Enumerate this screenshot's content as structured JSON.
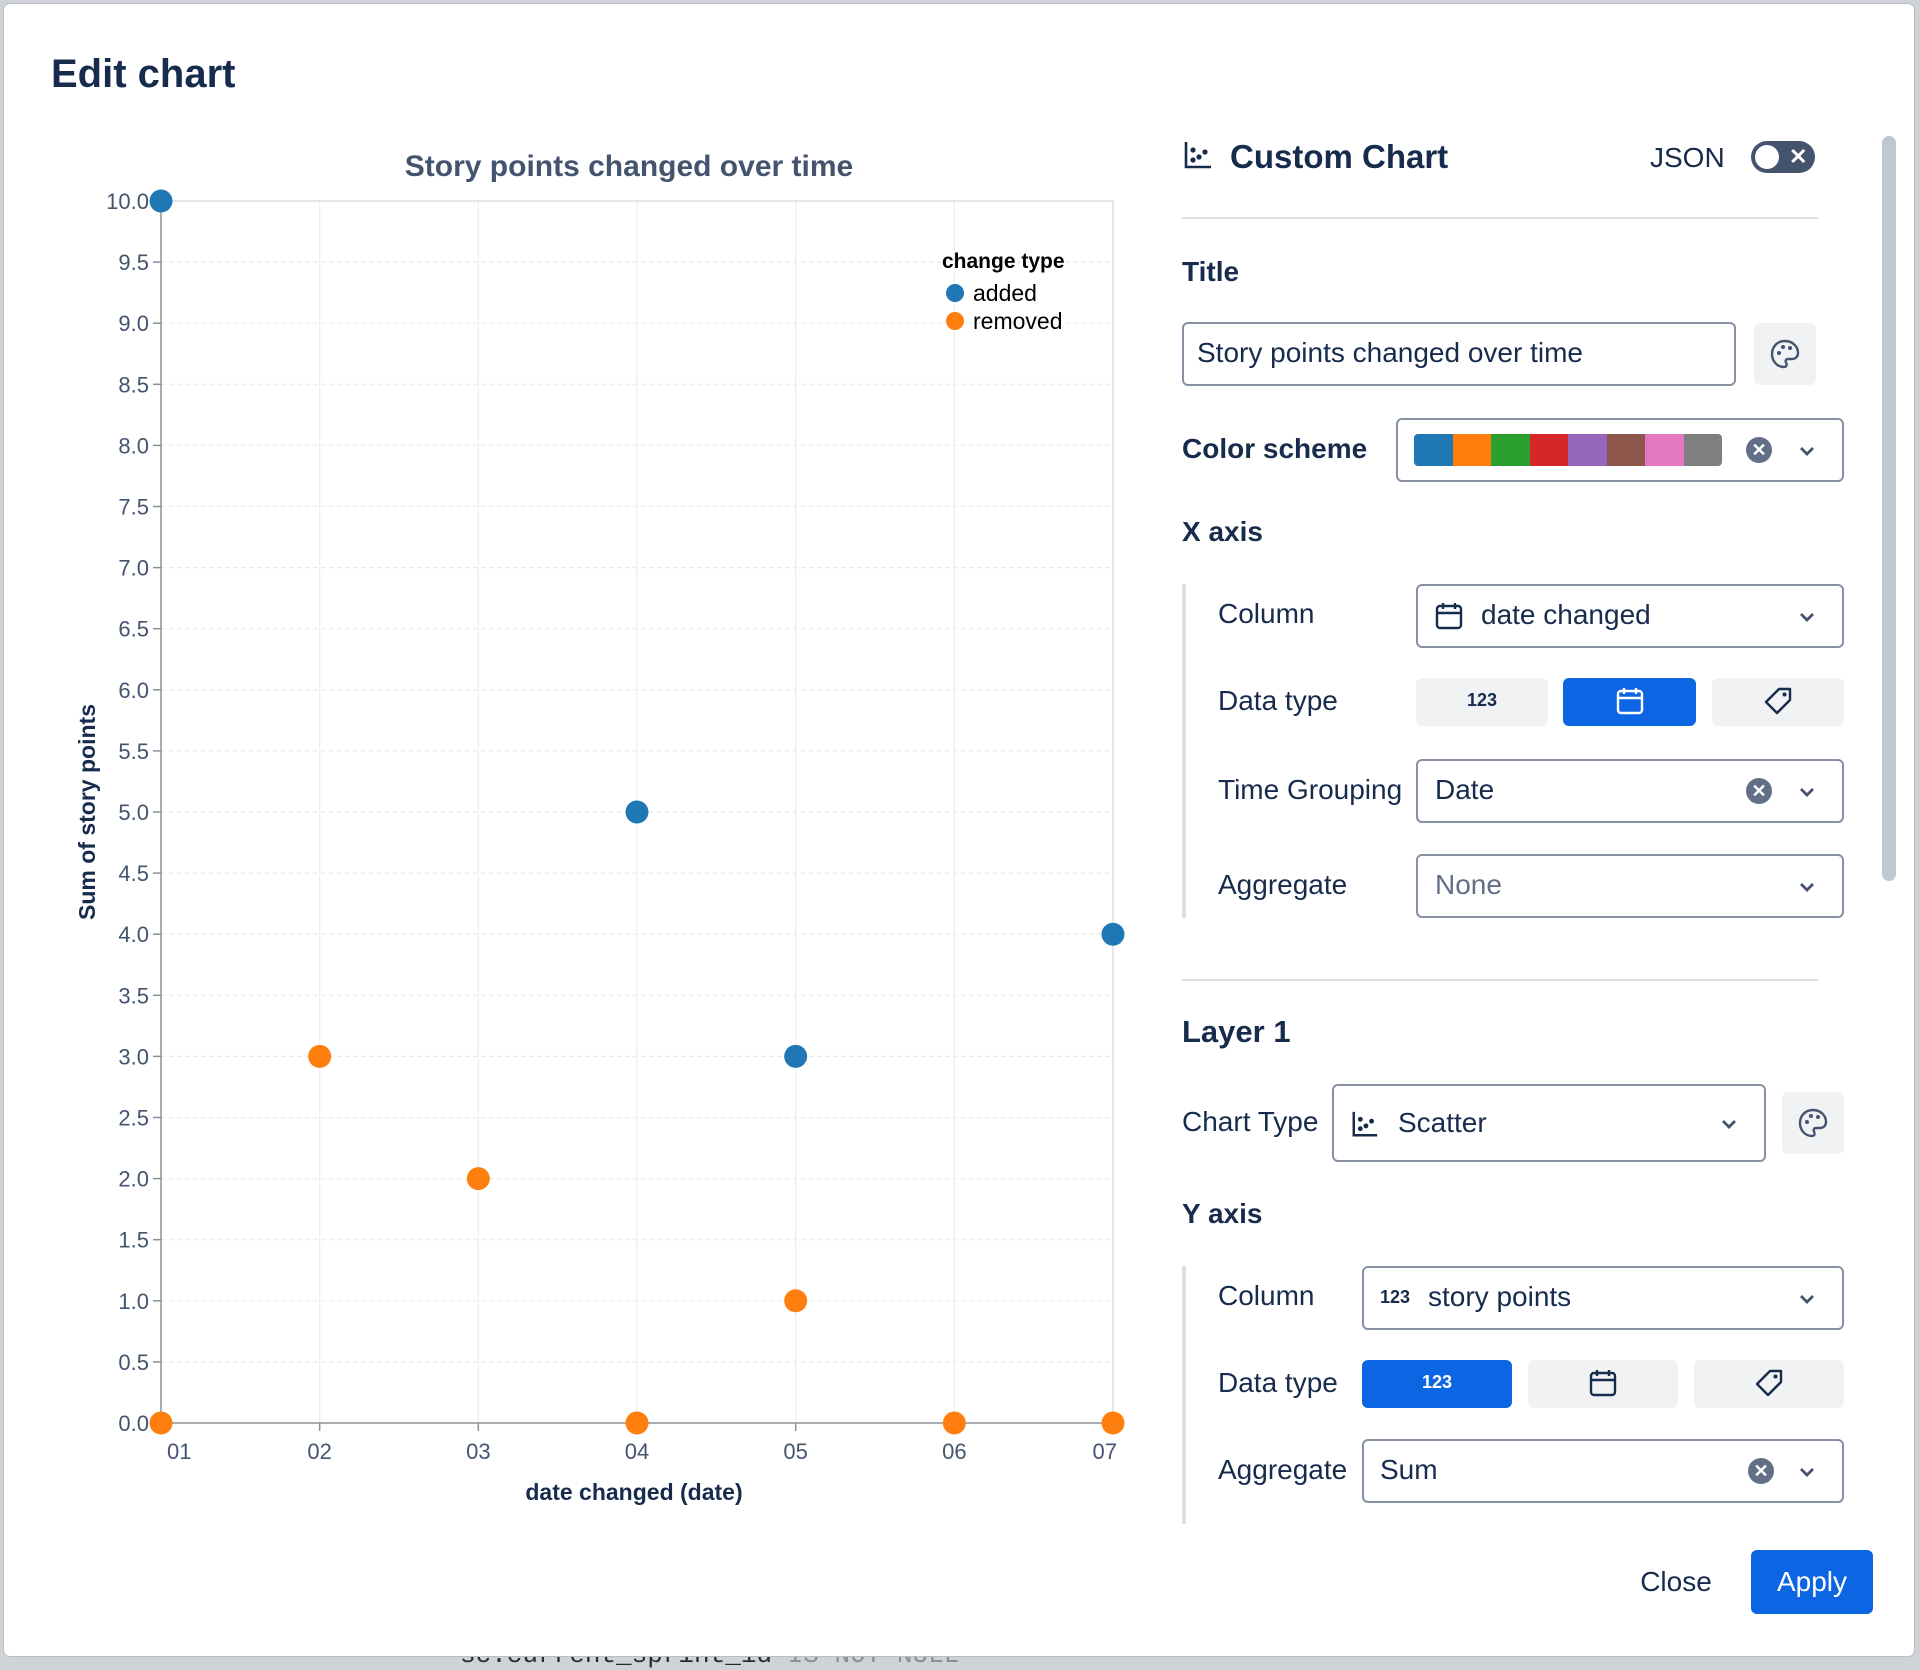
{
  "dialog": {
    "title": "Edit chart"
  },
  "background": {
    "code_text": "sc.current_sprint_id",
    "code_muted": "IS NOT NULL"
  },
  "chart_data": {
    "type": "scatter",
    "title": "Story points changed over time",
    "xlabel": "date changed (date)",
    "ylabel": "Sum of story points",
    "x_categories": [
      "01",
      "02",
      "03",
      "04",
      "05",
      "06",
      "07"
    ],
    "ylim": [
      0,
      10
    ],
    "y_ticks": [
      "0.0",
      "0.5",
      "1.0",
      "1.5",
      "2.0",
      "2.5",
      "3.0",
      "3.5",
      "4.0",
      "4.5",
      "5.0",
      "5.5",
      "6.0",
      "6.5",
      "7.0",
      "7.5",
      "8.0",
      "8.5",
      "9.0",
      "9.5",
      "10.0"
    ],
    "grid": true,
    "legend": {
      "title": "change type",
      "position": "top-right"
    },
    "series": [
      {
        "name": "added",
        "color": "#1f77b4",
        "points": [
          {
            "x": "01",
            "y": 10
          },
          {
            "x": "04",
            "y": 5
          },
          {
            "x": "05",
            "y": 3
          },
          {
            "x": "07",
            "y": 4
          }
        ]
      },
      {
        "name": "removed",
        "color": "#ff7f0e",
        "points": [
          {
            "x": "01",
            "y": 0
          },
          {
            "x": "02",
            "y": 3
          },
          {
            "x": "03",
            "y": 2
          },
          {
            "x": "04",
            "y": 0
          },
          {
            "x": "05",
            "y": 1
          },
          {
            "x": "06",
            "y": 0
          },
          {
            "x": "07",
            "y": 0
          }
        ]
      }
    ]
  },
  "panel": {
    "header_title": "Custom Chart",
    "header_icon": "scatter-chart-icon",
    "json_label": "JSON",
    "json_toggle_on": false,
    "title_label": "Title",
    "title_value": "Story points changed over time",
    "color_scheme_label": "Color scheme",
    "color_scheme": [
      "#1f77b4",
      "#ff7f0e",
      "#2ca02c",
      "#d62728",
      "#9467bd",
      "#8c564b",
      "#e377c2",
      "#7f7f7f"
    ],
    "x_axis": {
      "section": "X axis",
      "column_label": "Column",
      "column_value": "date changed",
      "column_icon": "calendar-icon",
      "data_type_label": "Data type",
      "data_type_number": "123",
      "data_type_selected": "date",
      "time_grouping_label": "Time Grouping",
      "time_grouping_value": "Date",
      "aggregate_label": "Aggregate",
      "aggregate_placeholder": "None"
    },
    "layer": {
      "title": "Layer 1",
      "chart_type_label": "Chart Type",
      "chart_type_value": "Scatter",
      "chart_type_icon": "scatter-chart-icon"
    },
    "y_axis": {
      "section": "Y axis",
      "column_label": "Column",
      "column_prefix": "123",
      "column_value": "story points",
      "data_type_label": "Data type",
      "data_type_number": "123",
      "data_type_selected": "number",
      "aggregate_label": "Aggregate",
      "aggregate_value": "Sum"
    }
  },
  "footer": {
    "close_label": "Close",
    "apply_label": "Apply"
  }
}
